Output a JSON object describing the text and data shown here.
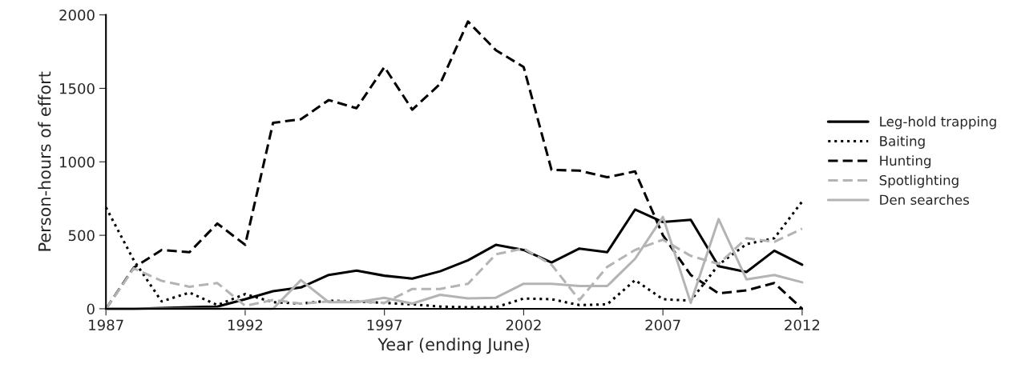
{
  "chart_data": {
    "type": "line",
    "xlabel": "Year (ending June)",
    "ylabel": "Person-hours of effort",
    "x": [
      1987,
      1988,
      1989,
      1990,
      1991,
      1992,
      1993,
      1994,
      1995,
      1996,
      1997,
      1998,
      1999,
      2000,
      2001,
      2002,
      2003,
      2004,
      2005,
      2006,
      2007,
      2008,
      2009,
      2010,
      2011,
      2012
    ],
    "xlim": [
      1987,
      2012
    ],
    "xticks": [
      1987,
      1992,
      1997,
      2002,
      2007,
      2012
    ],
    "ylim": [
      0,
      2000
    ],
    "yticks": [
      0,
      500,
      1000,
      1500,
      2000
    ],
    "grid": false,
    "legend": "right",
    "series": [
      {
        "name": "Leg-hold trapping",
        "color": "#000000",
        "line_style": "solid",
        "values": [
          0,
          0,
          5,
          10,
          15,
          65,
          120,
          145,
          230,
          260,
          225,
          205,
          255,
          330,
          435,
          400,
          315,
          410,
          385,
          675,
          590,
          605,
          290,
          250,
          395,
          300
        ]
      },
      {
        "name": "Baiting",
        "color": "#000000",
        "line_style": "dotted",
        "values": [
          690,
          330,
          50,
          110,
          25,
          100,
          45,
          35,
          55,
          50,
          40,
          30,
          15,
          10,
          10,
          70,
          65,
          25,
          30,
          195,
          65,
          55,
          300,
          440,
          480,
          730
        ]
      },
      {
        "name": "Hunting",
        "color": "#000000",
        "line_style": "dashed",
        "values": [
          0,
          280,
          400,
          385,
          580,
          435,
          1265,
          1290,
          1420,
          1365,
          1645,
          1355,
          1530,
          1955,
          1760,
          1645,
          945,
          940,
          895,
          935,
          500,
          230,
          105,
          125,
          175,
          0
        ]
      },
      {
        "name": "Spotlighting",
        "color": "#b4b4b4",
        "line_style": "dashed",
        "values": [
          0,
          275,
          190,
          150,
          175,
          20,
          60,
          35,
          50,
          50,
          40,
          135,
          135,
          170,
          370,
          410,
          300,
          60,
          285,
          400,
          470,
          360,
          305,
          480,
          455,
          545
        ]
      },
      {
        "name": "Den searches",
        "color": "#b4b4b4",
        "line_style": "solid",
        "values": [
          0,
          0,
          0,
          0,
          0,
          0,
          0,
          195,
          45,
          45,
          75,
          35,
          95,
          70,
          75,
          170,
          170,
          155,
          155,
          340,
          625,
          40,
          610,
          200,
          230,
          180
        ]
      }
    ]
  }
}
